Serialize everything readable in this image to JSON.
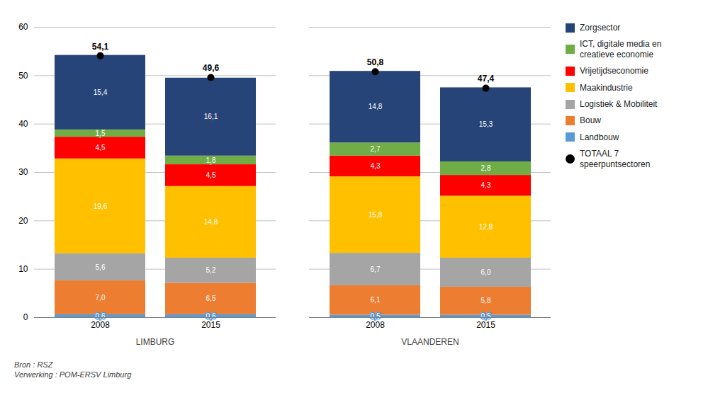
{
  "chart_data": {
    "type": "bar",
    "stacked": true,
    "data_labels": true,
    "categories": [
      "2008",
      "2015",
      "2008",
      "2015"
    ],
    "category_groups": [
      "LIMBURG",
      "LIMBURG",
      "VLAANDEREN",
      "VLAANDEREN"
    ],
    "series": [
      {
        "name": "Landbouw",
        "color": "#5b9bd5",
        "values": [
          0.6,
          0.6,
          0.5,
          0.5
        ],
        "value_labels": [
          "0,6",
          "0,6",
          "0,5",
          "0,5"
        ]
      },
      {
        "name": "Bouw",
        "color": "#ed7d31",
        "values": [
          7.0,
          6.5,
          6.1,
          5.8
        ],
        "value_labels": [
          "7,0",
          "6,5",
          "6,1",
          "5,8"
        ]
      },
      {
        "name": "Logistiek & Mobiliteit",
        "color": "#a5a5a5",
        "values": [
          5.6,
          5.2,
          6.7,
          6.0
        ],
        "value_labels": [
          "5,6",
          "5,2",
          "6,7",
          "6,0"
        ]
      },
      {
        "name": "Maakindustrie",
        "color": "#ffc000",
        "values": [
          19.6,
          14.8,
          15.8,
          12.8
        ],
        "value_labels": [
          "19,6",
          "14,8",
          "15,8",
          "12,8"
        ]
      },
      {
        "name": "Vrijetijdseconomie",
        "color": "#ff0000",
        "values": [
          4.5,
          4.5,
          4.3,
          4.3
        ],
        "value_labels": [
          "4,5",
          "4,5",
          "4,3",
          "4,3"
        ]
      },
      {
        "name": "ICT, digitale media en\ncreatieve economie",
        "color": "#70ad47",
        "values": [
          1.5,
          1.8,
          2.7,
          2.8
        ],
        "value_labels": [
          "1,5",
          "1,8",
          "2,7",
          "2,8"
        ]
      },
      {
        "name": "Zorgsector",
        "color": "#264478",
        "values": [
          15.4,
          16.1,
          14.8,
          15.3
        ],
        "value_labels": [
          "15,4",
          "16,1",
          "14,8",
          "15,3"
        ]
      },
      {
        "name": "TOTAAL 7\nspeerpuntsectoren",
        "type": "scatter",
        "marker": "circle",
        "color": "#000000",
        "values": [
          54.1,
          49.6,
          50.8,
          47.4
        ],
        "value_labels": [
          "54,1",
          "49,6",
          "50,8",
          "47,4"
        ]
      }
    ],
    "ylim": [
      0,
      60
    ],
    "yticks": [
      0,
      10,
      20,
      30,
      40,
      50,
      60
    ],
    "grid": true,
    "legend": "right",
    "annotations": [
      "Bron : RSZ\nVerwerking : POM-ERSV Limburg"
    ]
  }
}
